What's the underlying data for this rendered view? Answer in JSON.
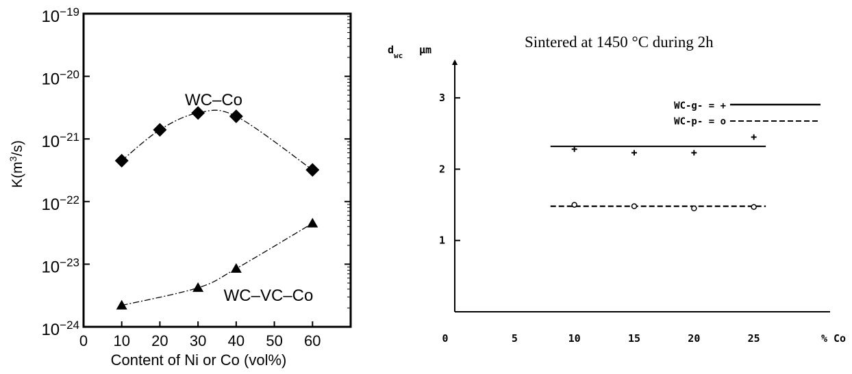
{
  "chart_data": [
    {
      "type": "line",
      "title": "",
      "xlabel": "Content of Ni or Co (vol%)",
      "ylabel": "K(m³/s)",
      "ylabel_parts": {
        "base": "K(m",
        "sup": "3",
        "tail": "/s)"
      },
      "xlim": [
        0,
        70
      ],
      "x_ticks": [
        0,
        10,
        20,
        30,
        40,
        50,
        60
      ],
      "y_scale": "log",
      "ylim": [
        1e-24,
        1e-19
      ],
      "y_ticks": [
        {
          "base": "10",
          "exp": "−19"
        },
        {
          "base": "10",
          "exp": "−20"
        },
        {
          "base": "10",
          "exp": "−21"
        },
        {
          "base": "10",
          "exp": "−22"
        },
        {
          "base": "10",
          "exp": "−23"
        },
        {
          "base": "10",
          "exp": "−24"
        }
      ],
      "y_tick_exponents": [
        -19,
        -20,
        -21,
        -22,
        -23,
        -24
      ],
      "grid": false,
      "series": [
        {
          "name": "WC–Co",
          "marker": "diamond",
          "line": "dash-dot",
          "x": [
            10,
            20,
            30,
            40,
            60
          ],
          "y": [
            4.5e-22,
            1.4e-21,
            2.6e-21,
            2.3e-21,
            3.2e-22
          ]
        },
        {
          "name": "WC–VC–Co",
          "marker": "triangle",
          "line": "dash-dot",
          "x": [
            10,
            30,
            40,
            60
          ],
          "y": [
            2.2e-24,
            4.2e-24,
            8.5e-24,
            4.5e-23
          ]
        }
      ]
    },
    {
      "type": "scatter",
      "title": "Sintered at 1450 °C during 2h",
      "xlabel": "% Co",
      "ylabel_symbol": "d",
      "ylabel_sub": "wc",
      "ylabel_unit": "µm",
      "xlim": [
        0,
        30
      ],
      "x_ticks": [
        0,
        5,
        10,
        15,
        20,
        25
      ],
      "ylim": [
        0,
        3.5
      ],
      "y_ticks": [
        1,
        2,
        3
      ],
      "grid": false,
      "legend_position": "top-right",
      "series": [
        {
          "name": "WC-g-",
          "legend_label": "WC-g- = +",
          "marker": "plus",
          "line": "solid",
          "x": [
            10,
            15,
            20,
            25
          ],
          "y": [
            2.28,
            2.23,
            2.23,
            2.45
          ],
          "fit": {
            "x": [
              8,
              26
            ],
            "y": [
              2.32,
              2.32
            ]
          }
        },
        {
          "name": "WC-p-",
          "legend_label": "WC-p- = o",
          "marker": "circle",
          "line": "dashed",
          "x": [
            10,
            15,
            20,
            25
          ],
          "y": [
            1.5,
            1.48,
            1.45,
            1.47
          ],
          "fit": {
            "x": [
              8,
              26
            ],
            "y": [
              1.48,
              1.48
            ]
          }
        }
      ]
    }
  ]
}
